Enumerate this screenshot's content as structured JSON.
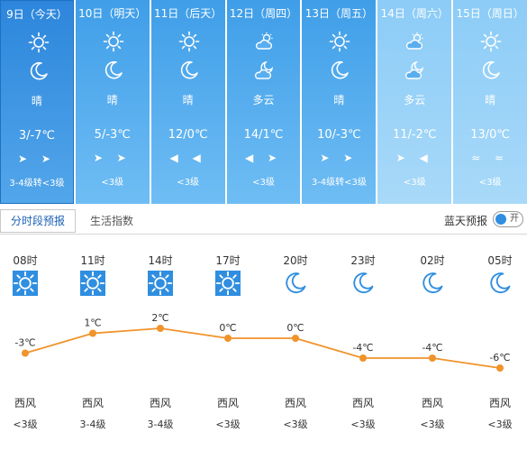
{
  "days": [
    {
      "date": "9日（今天）",
      "icons": [
        "sun-icon",
        "moon-icon"
      ],
      "desc": "晴",
      "temp": "3/-7℃",
      "wind_arrows": "➤ ➤",
      "wind_level": "3-4级转<3级",
      "style": "today"
    },
    {
      "date": "10日（明天）",
      "icons": [
        "sun-icon",
        "moon-icon"
      ],
      "desc": "晴",
      "temp": "5/-3℃",
      "wind_arrows": "➤ ➤",
      "wind_level": "<3级",
      "style": "normal"
    },
    {
      "date": "11日（后天）",
      "icons": [
        "sun-icon",
        "moon-icon"
      ],
      "desc": "晴",
      "temp": "12/0℃",
      "wind_arrows": "◀ ◀",
      "wind_level": "<3级",
      "style": "normal"
    },
    {
      "date": "12日（周四）",
      "icons": [
        "cloudy-day-icon",
        "cloudy-night-icon"
      ],
      "desc": "多云",
      "temp": "14/1℃",
      "wind_arrows": "◀ ➤",
      "wind_level": "<3级",
      "style": "normal"
    },
    {
      "date": "13日（周五）",
      "icons": [
        "sun-icon",
        "moon-icon"
      ],
      "desc": "晴",
      "temp": "10/-3℃",
      "wind_arrows": "➤ ➤",
      "wind_level": "3-4级转<3级",
      "style": "normal"
    },
    {
      "date": "14日（周六）",
      "icons": [
        "cloudy-day-icon",
        "cloudy-night-icon"
      ],
      "desc": "多云",
      "temp": "11/-2℃",
      "wind_arrows": "➤ ◀",
      "wind_level": "<3级",
      "style": "future"
    },
    {
      "date": "15日（周日）",
      "icons": [
        "sun-icon",
        "moon-icon"
      ],
      "desc": "晴",
      "temp": "13/0℃",
      "wind_arrows": "≈ ≈",
      "wind_level": "<3级",
      "style": "future"
    }
  ],
  "tabs": {
    "active": "分时段预报",
    "other": "生活指数"
  },
  "blue_sky": {
    "label": "蓝天预报",
    "toggle": "开"
  },
  "hourly": [
    {
      "time": "08时",
      "icon": "sun-icon",
      "temp_label": "-3℃",
      "temp": -3,
      "wind": "西风",
      "level": "<3级"
    },
    {
      "time": "11时",
      "icon": "sun-icon",
      "temp_label": "1℃",
      "temp": 1,
      "wind": "西风",
      "level": "3-4级"
    },
    {
      "time": "14时",
      "icon": "sun-icon",
      "temp_label": "2℃",
      "temp": 2,
      "wind": "西风",
      "level": "3-4级"
    },
    {
      "time": "17时",
      "icon": "sun-icon",
      "temp_label": "0℃",
      "temp": 0,
      "wind": "西风",
      "level": "<3级"
    },
    {
      "time": "20时",
      "icon": "moon-icon",
      "temp_label": "0℃",
      "temp": 0,
      "wind": "西风",
      "level": "<3级"
    },
    {
      "time": "23时",
      "icon": "moon-icon",
      "temp_label": "-4℃",
      "temp": -4,
      "wind": "西风",
      "level": "<3级"
    },
    {
      "time": "02时",
      "icon": "moon-icon",
      "temp_label": "-4℃",
      "temp": -4,
      "wind": "西风",
      "level": "<3级"
    },
    {
      "time": "05时",
      "icon": "moon-icon",
      "temp_label": "-6℃",
      "temp": -6,
      "wind": "西风",
      "level": "<3级"
    }
  ],
  "colors": {
    "line": "#f0932b",
    "sun_box": "#2f8ee0",
    "moon": "#2f8ee0"
  }
}
